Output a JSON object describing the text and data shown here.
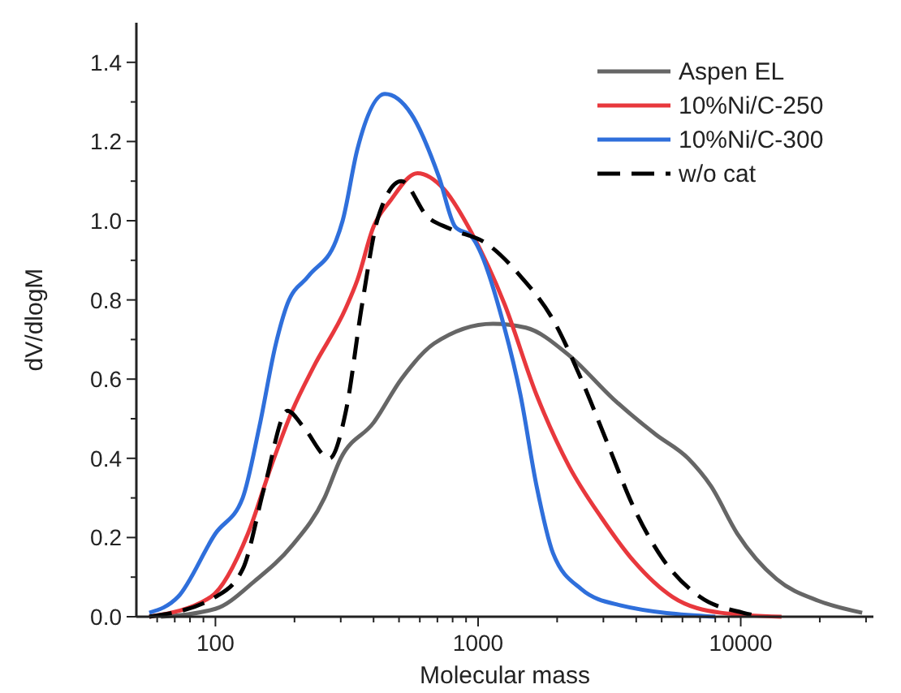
{
  "chart_data": {
    "type": "line",
    "xlabel": "Molecular mass",
    "ylabel": "dV/dlogM",
    "log": "x",
    "xlim": [
      50,
      32000
    ],
    "ylim": [
      0,
      1.5
    ],
    "xticks": [
      {
        "value": 60,
        "label": null
      },
      {
        "value": 70,
        "label": null
      },
      {
        "value": 80,
        "label": null
      },
      {
        "value": 90,
        "label": null
      },
      100,
      {
        "value": 200,
        "label": null
      },
      {
        "value": 300,
        "label": null
      },
      {
        "value": 400,
        "label": null
      },
      {
        "value": 500,
        "label": null
      },
      {
        "value": 600,
        "label": null
      },
      {
        "value": 700,
        "label": null
      },
      {
        "value": 800,
        "label": null
      },
      {
        "value": 900,
        "label": null
      },
      1000,
      {
        "value": 2000,
        "label": null
      },
      {
        "value": 3000,
        "label": null
      },
      {
        "value": 4000,
        "label": null
      },
      {
        "value": 5000,
        "label": null
      },
      {
        "value": 6000,
        "label": null
      },
      {
        "value": 7000,
        "label": null
      },
      {
        "value": 8000,
        "label": null
      },
      {
        "value": 9000,
        "label": null
      },
      10000,
      {
        "value": 20000,
        "label": null
      },
      {
        "value": 30000,
        "label": null
      }
    ],
    "yticks": [
      {
        "value": 0,
        "label": "0.0"
      },
      {
        "value": 0.1,
        "label": null
      },
      0.2,
      {
        "value": 0.3,
        "label": null
      },
      0.4,
      {
        "value": 0.5,
        "label": null
      },
      0.6,
      {
        "value": 0.7,
        "label": null
      },
      0.8,
      {
        "value": 0.9,
        "label": null
      },
      {
        "value": 1,
        "label": "1.0"
      },
      {
        "value": 1.1,
        "label": null
      },
      1.2,
      {
        "value": 1.3,
        "label": null
      },
      1.4
    ],
    "legend": "top right",
    "grid": false,
    "series": [
      {
        "name": "Aspen EL",
        "color": "#666666",
        "line_style": "solid",
        "x": [
          62,
          100,
          141,
          196,
          260,
          300,
          400,
          510,
          680,
          1140,
          1520,
          2220,
          3270,
          4750,
          6300,
          7700,
          9700,
          13700,
          19800,
          29000
        ],
        "values": [
          0,
          0.02,
          0.09,
          0.18,
          0.3,
          0.4,
          0.49,
          0.6,
          0.69,
          0.74,
          0.73,
          0.66,
          0.55,
          0.46,
          0.4,
          0.33,
          0.21,
          0.095,
          0.04,
          0.01
        ]
      },
      {
        "name": "10%Ni/C-250",
        "color": "#e8383d",
        "line_style": "solid",
        "x": [
          56,
          96,
          133,
          163,
          196,
          236,
          314,
          347,
          400,
          463,
          588,
          741,
          944,
          1260,
          1670,
          2220,
          2950,
          3920,
          5500,
          8400,
          14300
        ],
        "values": [
          0,
          0.05,
          0.21,
          0.38,
          0.52,
          0.63,
          0.78,
          0.85,
          0.985,
          1.05,
          1.12,
          1.08,
          0.97,
          0.79,
          0.56,
          0.38,
          0.25,
          0.14,
          0.05,
          0.01,
          0
        ]
      },
      {
        "name": "10%Ni/C-300",
        "color": "#2f6fdb",
        "line_style": "solid",
        "x": [
          56,
          72,
          100,
          127,
          147,
          170,
          188,
          226,
          288,
          305,
          347,
          442,
          556,
          710,
          818,
          944,
          1260,
          1450,
          1670,
          1930,
          2470,
          3420,
          8000
        ],
        "values": [
          0.01,
          0.05,
          0.21,
          0.3,
          0.48,
          0.69,
          0.79,
          0.86,
          0.95,
          1.0,
          1.18,
          1.32,
          1.27,
          1.11,
          0.985,
          0.96,
          0.73,
          0.56,
          0.33,
          0.16,
          0.07,
          0.03,
          0
        ]
      },
      {
        "name": "w/o cat",
        "color": "#000000",
        "line_style": "dashed",
        "x": [
          56,
          100,
          127,
          154,
          188,
          216,
          272,
          314,
          362,
          417,
          510,
          642,
          780,
          1090,
          1450,
          1930,
          2470,
          3100,
          3920,
          5000,
          7000,
          10200,
          12000
        ],
        "values": [
          0,
          0.05,
          0.12,
          0.33,
          0.52,
          0.48,
          0.4,
          0.52,
          0.79,
          1.01,
          1.1,
          1.01,
          0.98,
          0.94,
          0.86,
          0.75,
          0.6,
          0.44,
          0.275,
          0.15,
          0.05,
          0.01,
          0
        ]
      }
    ]
  }
}
